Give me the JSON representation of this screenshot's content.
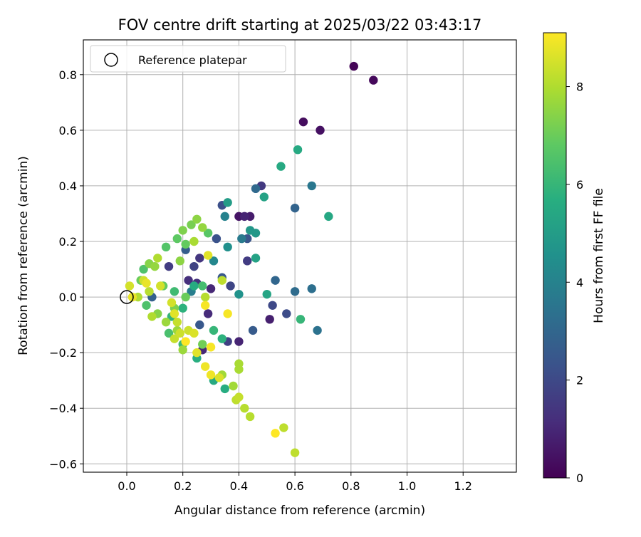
{
  "chart_data": {
    "type": "scatter",
    "title": "FOV centre drift starting at 2025/03/22 03:43:17",
    "xlabel": "Angular distance from reference (arcmin)",
    "ylabel": "Rotation from reference (arcmin)",
    "xlim": [
      -0.155,
      1.39
    ],
    "ylim": [
      -0.63,
      0.925
    ],
    "xticks": [
      "0.0",
      "0.2",
      "0.4",
      "0.6",
      "0.8",
      "1.0",
      "1.2"
    ],
    "xtick_values": [
      0.0,
      0.2,
      0.4,
      0.6,
      0.8,
      1.0,
      1.2
    ],
    "yticks": [
      "−0.6",
      "−0.4",
      "−0.2",
      "0.0",
      "0.2",
      "0.4",
      "0.6",
      "0.8"
    ],
    "ytick_values": [
      -0.6,
      -0.4,
      -0.2,
      0.0,
      0.2,
      0.4,
      0.6,
      0.8
    ],
    "grid": true,
    "legend": {
      "position": "top-left",
      "entries": [
        "Reference platepar"
      ]
    },
    "reference_point": {
      "x": 0.0,
      "y": 0.0
    },
    "colorbar": {
      "label": "Hours from first FF file",
      "colormap": "viridis",
      "range": [
        0,
        9.1
      ],
      "ticks": [
        "0",
        "2",
        "4",
        "6",
        "8"
      ],
      "tick_values": [
        0,
        2,
        4,
        6,
        8
      ]
    },
    "points": [
      {
        "x": 0.81,
        "y": 0.83,
        "c": 0.1
      },
      {
        "x": 0.88,
        "y": 0.78,
        "c": 0.2
      },
      {
        "x": 0.63,
        "y": 0.63,
        "c": 0.3
      },
      {
        "x": 0.69,
        "y": 0.6,
        "c": 0.4
      },
      {
        "x": 0.4,
        "y": 0.29,
        "c": 0.5
      },
      {
        "x": 0.44,
        "y": 0.29,
        "c": 0.7
      },
      {
        "x": 0.42,
        "y": 0.29,
        "c": 0.9
      },
      {
        "x": 0.51,
        "y": -0.08,
        "c": 0.8
      },
      {
        "x": 0.4,
        "y": -0.16,
        "c": 0.9
      },
      {
        "x": 0.27,
        "y": -0.19,
        "c": 1.0
      },
      {
        "x": 0.3,
        "y": 0.03,
        "c": 1.0
      },
      {
        "x": 0.29,
        "y": -0.06,
        "c": 1.1
      },
      {
        "x": 0.22,
        "y": 0.06,
        "c": 1.2
      },
      {
        "x": 0.25,
        "y": 0.05,
        "c": 1.3
      },
      {
        "x": 0.26,
        "y": 0.14,
        "c": 1.4
      },
      {
        "x": 0.48,
        "y": 0.4,
        "c": 1.5
      },
      {
        "x": 0.43,
        "y": 0.13,
        "c": 1.6
      },
      {
        "x": 0.15,
        "y": 0.11,
        "c": 1.6
      },
      {
        "x": 0.36,
        "y": -0.16,
        "c": 1.7
      },
      {
        "x": 0.24,
        "y": 0.11,
        "c": 1.8
      },
      {
        "x": 0.37,
        "y": 0.04,
        "c": 1.9
      },
      {
        "x": 0.52,
        "y": -0.03,
        "c": 2.0
      },
      {
        "x": 0.57,
        "y": -0.06,
        "c": 2.1
      },
      {
        "x": 0.34,
        "y": 0.33,
        "c": 2.2
      },
      {
        "x": 0.32,
        "y": 0.21,
        "c": 2.3
      },
      {
        "x": 0.43,
        "y": 0.21,
        "c": 2.4
      },
      {
        "x": 0.34,
        "y": 0.07,
        "c": 2.5
      },
      {
        "x": 0.26,
        "y": -0.1,
        "c": 2.5
      },
      {
        "x": 0.45,
        "y": -0.12,
        "c": 2.6
      },
      {
        "x": 0.21,
        "y": 0.17,
        "c": 2.7
      },
      {
        "x": 0.09,
        "y": 0.0,
        "c": 2.8
      },
      {
        "x": 0.6,
        "y": 0.32,
        "c": 2.9
      },
      {
        "x": 0.53,
        "y": 0.06,
        "c": 3.0
      },
      {
        "x": 0.46,
        "y": 0.39,
        "c": 3.1
      },
      {
        "x": 0.6,
        "y": 0.02,
        "c": 3.2
      },
      {
        "x": 0.66,
        "y": 0.03,
        "c": 3.3
      },
      {
        "x": 0.68,
        "y": -0.12,
        "c": 3.4
      },
      {
        "x": 0.66,
        "y": 0.4,
        "c": 3.6
      },
      {
        "x": 0.41,
        "y": 0.21,
        "c": 3.7
      },
      {
        "x": 0.23,
        "y": 0.02,
        "c": 3.8
      },
      {
        "x": 0.35,
        "y": 0.29,
        "c": 4.0
      },
      {
        "x": 0.31,
        "y": 0.13,
        "c": 4.2
      },
      {
        "x": 0.36,
        "y": 0.18,
        "c": 4.5
      },
      {
        "x": 0.4,
        "y": 0.01,
        "c": 4.6
      },
      {
        "x": 0.44,
        "y": 0.24,
        "c": 4.8
      },
      {
        "x": 0.46,
        "y": 0.23,
        "c": 4.8
      },
      {
        "x": 0.36,
        "y": 0.34,
        "c": 5.0
      },
      {
        "x": 0.49,
        "y": 0.36,
        "c": 5.2
      },
      {
        "x": 0.46,
        "y": 0.14,
        "c": 5.2
      },
      {
        "x": 0.5,
        "y": 0.01,
        "c": 5.3
      },
      {
        "x": 0.72,
        "y": 0.29,
        "c": 5.4
      },
      {
        "x": 0.55,
        "y": 0.47,
        "c": 5.5
      },
      {
        "x": 0.61,
        "y": 0.53,
        "c": 5.5
      },
      {
        "x": 0.31,
        "y": -0.3,
        "c": 5.5
      },
      {
        "x": 0.35,
        "y": -0.33,
        "c": 5.6
      },
      {
        "x": 0.24,
        "y": 0.04,
        "c": 5.6
      },
      {
        "x": 0.25,
        "y": -0.22,
        "c": 5.7
      },
      {
        "x": 0.34,
        "y": -0.15,
        "c": 5.8
      },
      {
        "x": 0.2,
        "y": -0.04,
        "c": 5.8
      },
      {
        "x": 0.16,
        "y": -0.07,
        "c": 5.9
      },
      {
        "x": 0.62,
        "y": -0.08,
        "c": 6.0
      },
      {
        "x": 0.31,
        "y": -0.12,
        "c": 6.0
      },
      {
        "x": 0.2,
        "y": -0.17,
        "c": 6.1
      },
      {
        "x": 0.17,
        "y": 0.02,
        "c": 6.2
      },
      {
        "x": 0.27,
        "y": 0.04,
        "c": 6.3
      },
      {
        "x": 0.15,
        "y": -0.13,
        "c": 6.4
      },
      {
        "x": 0.07,
        "y": -0.03,
        "c": 6.5
      },
      {
        "x": 0.06,
        "y": 0.1,
        "c": 6.5
      },
      {
        "x": 0.14,
        "y": 0.18,
        "c": 6.6
      },
      {
        "x": 0.29,
        "y": 0.23,
        "c": 6.7
      },
      {
        "x": 0.18,
        "y": 0.21,
        "c": 6.8
      },
      {
        "x": 0.21,
        "y": 0.19,
        "c": 6.9
      },
      {
        "x": 0.13,
        "y": 0.04,
        "c": 6.9
      },
      {
        "x": 0.05,
        "y": 0.06,
        "c": 7.0
      },
      {
        "x": 0.21,
        "y": 0.0,
        "c": 7.0
      },
      {
        "x": 0.27,
        "y": -0.17,
        "c": 7.1
      },
      {
        "x": 0.23,
        "y": 0.26,
        "c": 7.2
      },
      {
        "x": 0.2,
        "y": 0.24,
        "c": 7.3
      },
      {
        "x": 0.17,
        "y": -0.04,
        "c": 7.3
      },
      {
        "x": 0.08,
        "y": 0.12,
        "c": 7.4
      },
      {
        "x": 0.11,
        "y": -0.06,
        "c": 7.4
      },
      {
        "x": 0.19,
        "y": 0.13,
        "c": 7.5
      },
      {
        "x": 0.25,
        "y": 0.28,
        "c": 7.5
      },
      {
        "x": 0.27,
        "y": 0.25,
        "c": 7.6
      },
      {
        "x": 0.1,
        "y": 0.11,
        "c": 7.6
      },
      {
        "x": 0.14,
        "y": -0.09,
        "c": 7.7
      },
      {
        "x": 0.18,
        "y": -0.12,
        "c": 7.7
      },
      {
        "x": 0.2,
        "y": -0.19,
        "c": 7.7
      },
      {
        "x": 0.34,
        "y": -0.28,
        "c": 7.8
      },
      {
        "x": 0.38,
        "y": -0.32,
        "c": 7.8
      },
      {
        "x": 0.4,
        "y": -0.24,
        "c": 7.9
      },
      {
        "x": 0.4,
        "y": -0.26,
        "c": 7.9
      },
      {
        "x": 0.24,
        "y": 0.2,
        "c": 7.9
      },
      {
        "x": 0.04,
        "y": 0.0,
        "c": 8.0
      },
      {
        "x": 0.09,
        "y": -0.07,
        "c": 8.0
      },
      {
        "x": 0.11,
        "y": 0.14,
        "c": 8.0
      },
      {
        "x": 0.28,
        "y": 0.0,
        "c": 8.1
      },
      {
        "x": 0.08,
        "y": 0.02,
        "c": 8.1
      },
      {
        "x": 0.42,
        "y": -0.4,
        "c": 8.1
      },
      {
        "x": 0.44,
        "y": -0.43,
        "c": 8.1
      },
      {
        "x": 0.56,
        "y": -0.47,
        "c": 8.2
      },
      {
        "x": 0.6,
        "y": -0.56,
        "c": 8.2
      },
      {
        "x": 0.34,
        "y": 0.06,
        "c": 8.2
      },
      {
        "x": 0.39,
        "y": -0.37,
        "c": 8.2
      },
      {
        "x": 0.4,
        "y": -0.36,
        "c": 8.3
      },
      {
        "x": 0.17,
        "y": -0.15,
        "c": 8.3
      },
      {
        "x": 0.18,
        "y": -0.09,
        "c": 8.3
      },
      {
        "x": 0.19,
        "y": -0.13,
        "c": 8.4
      },
      {
        "x": 0.22,
        "y": -0.12,
        "c": 8.4
      },
      {
        "x": 0.06,
        "y": 0.06,
        "c": 8.4
      },
      {
        "x": 0.12,
        "y": 0.04,
        "c": 8.5
      },
      {
        "x": 0.01,
        "y": 0.04,
        "c": 8.5
      },
      {
        "x": 0.16,
        "y": -0.02,
        "c": 8.5
      },
      {
        "x": 0.24,
        "y": -0.13,
        "c": 8.6
      },
      {
        "x": 0.33,
        "y": -0.29,
        "c": 8.6
      },
      {
        "x": 0.17,
        "y": -0.06,
        "c": 8.7
      },
      {
        "x": 0.25,
        "y": -0.2,
        "c": 8.7
      },
      {
        "x": 0.29,
        "y": 0.15,
        "c": 8.7
      },
      {
        "x": 0.02,
        "y": 0.0,
        "c": 8.8
      },
      {
        "x": 0.07,
        "y": 0.05,
        "c": 8.8
      },
      {
        "x": 0.28,
        "y": -0.25,
        "c": 8.9
      },
      {
        "x": 0.3,
        "y": -0.28,
        "c": 8.9
      },
      {
        "x": 0.28,
        "y": -0.03,
        "c": 9.0
      },
      {
        "x": 0.36,
        "y": -0.06,
        "c": 9.0
      },
      {
        "x": 0.3,
        "y": -0.18,
        "c": 9.0
      },
      {
        "x": 0.53,
        "y": -0.49,
        "c": 9.1
      },
      {
        "x": 0.21,
        "y": -0.16,
        "c": 9.1
      }
    ]
  }
}
